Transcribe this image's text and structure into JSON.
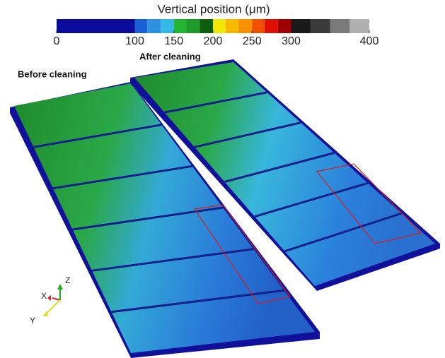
{
  "colorbar": {
    "title": "Vertical position (μm)",
    "lim": [
      0,
      400
    ],
    "ticks": [
      0,
      100,
      150,
      200,
      250,
      300,
      400
    ],
    "segments": [
      {
        "from": 0,
        "to": 100,
        "color": "#0c0c9c"
      },
      {
        "from": 100,
        "to": 116,
        "color": "#1a5fd6"
      },
      {
        "from": 116,
        "to": 133,
        "color": "#2f8fe0"
      },
      {
        "from": 133,
        "to": 150,
        "color": "#34b8e8"
      },
      {
        "from": 150,
        "to": 166,
        "color": "#22b432"
      },
      {
        "from": 166,
        "to": 183,
        "color": "#1e9a28"
      },
      {
        "from": 183,
        "to": 200,
        "color": "#0e5e12"
      },
      {
        "from": 200,
        "to": 216,
        "color": "#f0e800"
      },
      {
        "from": 216,
        "to": 233,
        "color": "#f8b800"
      },
      {
        "from": 233,
        "to": 250,
        "color": "#f89000"
      },
      {
        "from": 250,
        "to": 266,
        "color": "#f05000"
      },
      {
        "from": 266,
        "to": 283,
        "color": "#e01000"
      },
      {
        "from": 283,
        "to": 300,
        "color": "#a00000"
      },
      {
        "from": 300,
        "to": 325,
        "color": "#1a1a1a"
      },
      {
        "from": 325,
        "to": 350,
        "color": "#3a3a3a"
      },
      {
        "from": 350,
        "to": 375,
        "color": "#7a7a7a"
      },
      {
        "from": 375,
        "to": 400,
        "color": "#b0b0b0"
      }
    ]
  },
  "panels": [
    "Before cleaning",
    "After cleaning"
  ],
  "axes": [
    "X",
    "Y",
    "Z"
  ]
}
